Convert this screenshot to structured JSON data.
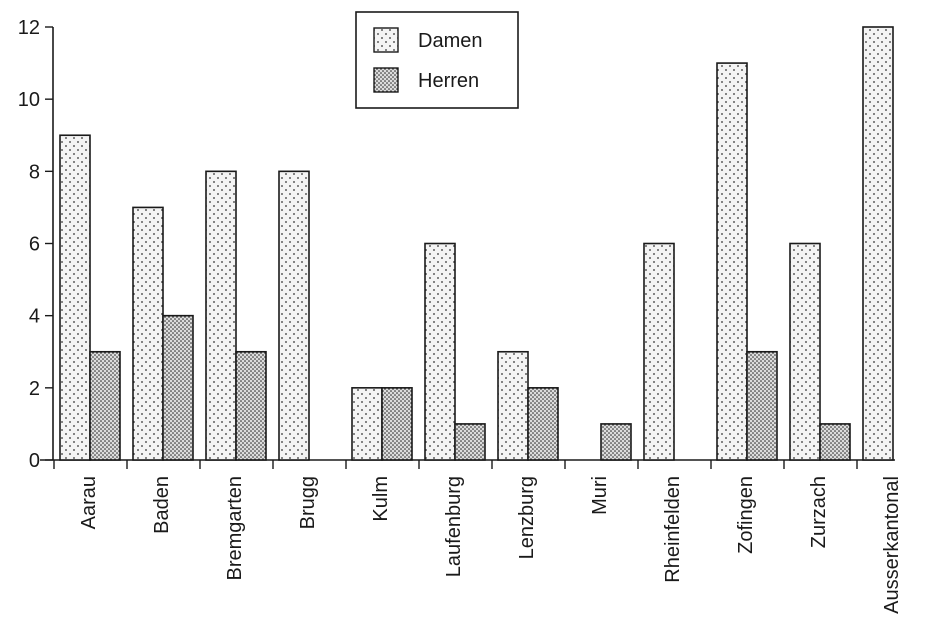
{
  "chart_data": {
    "type": "bar",
    "title": "",
    "xlabel": "",
    "ylabel": "",
    "categories": [
      "Aarau",
      "Baden",
      "Bremgarten",
      "Brugg",
      "Kulm",
      "Laufenburg",
      "Lenzburg",
      "Muri",
      "Rheinfelden",
      "Zofingen",
      "Zurzach",
      "Ausserkantonal"
    ],
    "series": [
      {
        "name": "Damen",
        "values": [
          9,
          7,
          8,
          8,
          2,
          6,
          3,
          0,
          6,
          11,
          6,
          12
        ]
      },
      {
        "name": "Herren",
        "values": [
          3,
          4,
          3,
          0,
          2,
          1,
          2,
          1,
          0,
          3,
          1,
          0
        ]
      }
    ],
    "ylim": [
      0,
      12
    ],
    "yticks": [
      0,
      2,
      4,
      6,
      8,
      10,
      12
    ],
    "grid": false,
    "legend_position": "top-center"
  },
  "legend": {
    "items": [
      "Damen",
      "Herren"
    ]
  }
}
